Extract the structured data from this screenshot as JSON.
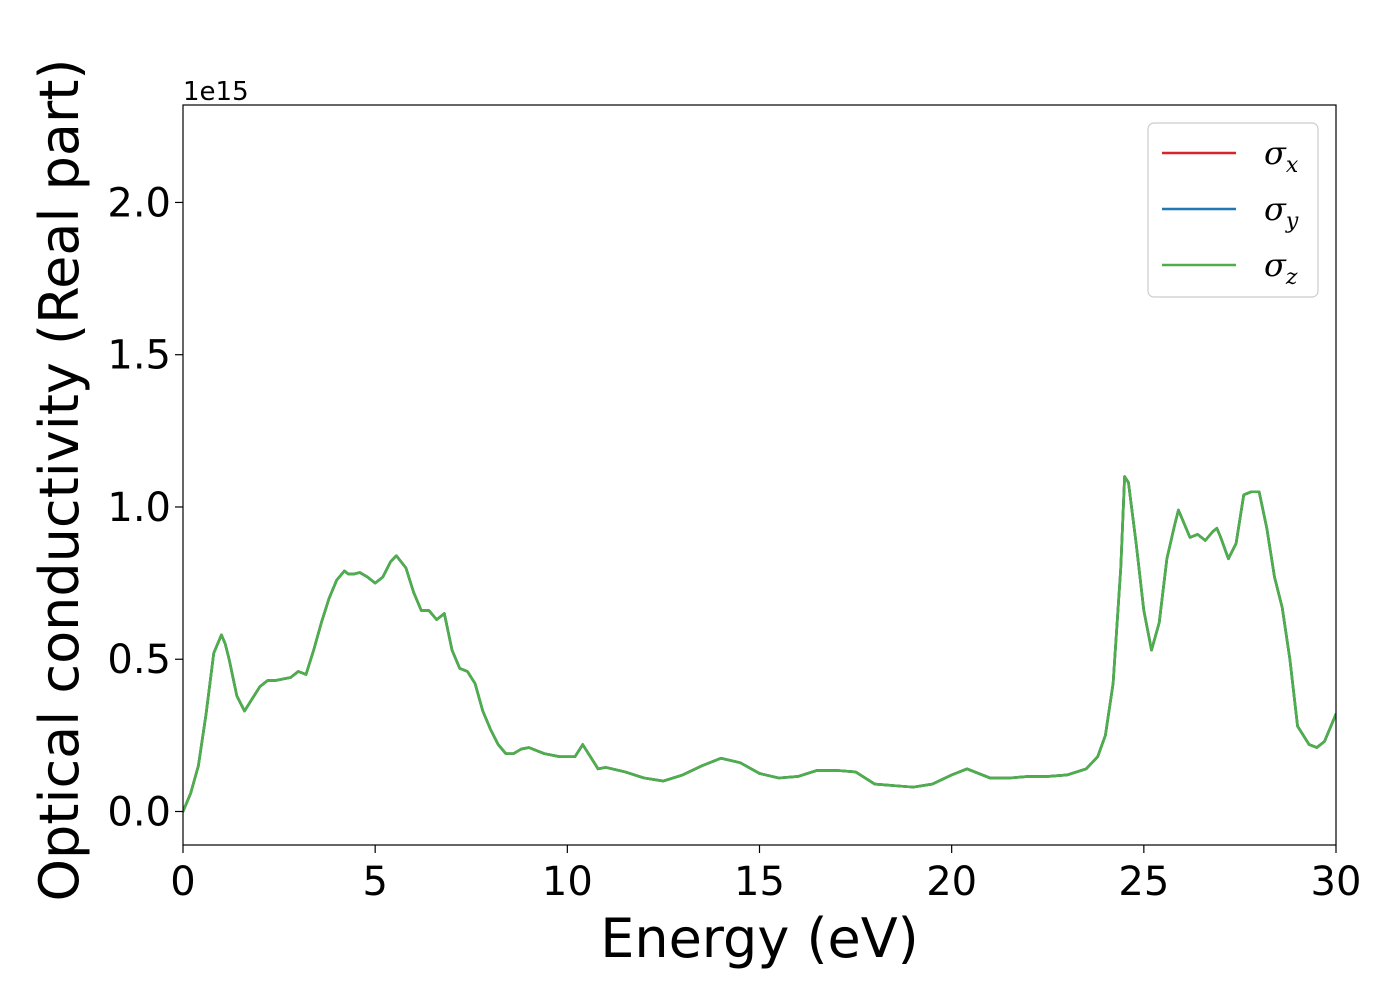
{
  "chart_data": {
    "type": "line",
    "title": "",
    "xlabel": "Energy (eV)",
    "ylabel": "Optical conductivity (Real part)",
    "y_offset_label": "1e15",
    "xlim": [
      0,
      30
    ],
    "ylim": [
      -0.11,
      2.32
    ],
    "x_ticks": [
      0,
      5,
      10,
      15,
      20,
      25,
      30
    ],
    "y_ticks": [
      0.0,
      0.5,
      1.0,
      1.5,
      2.0
    ],
    "x_tick_labels": [
      "0",
      "5",
      "10",
      "15",
      "20",
      "25",
      "30"
    ],
    "y_tick_labels": [
      "0.0",
      "0.5",
      "1.0",
      "1.5",
      "2.0"
    ],
    "grid": false,
    "legend_position": "top-right",
    "x": [
      0,
      0.2,
      0.4,
      0.6,
      0.8,
      1.0,
      1.1,
      1.2,
      1.4,
      1.6,
      1.8,
      2.0,
      2.2,
      2.4,
      2.6,
      2.8,
      3.0,
      3.2,
      3.4,
      3.6,
      3.8,
      4.0,
      4.2,
      4.3,
      4.45,
      4.6,
      4.8,
      5.0,
      5.2,
      5.4,
      5.55,
      5.8,
      6.0,
      6.2,
      6.4,
      6.6,
      6.8,
      7.0,
      7.2,
      7.4,
      7.6,
      7.8,
      8.0,
      8.2,
      8.4,
      8.6,
      8.8,
      9.0,
      9.4,
      9.8,
      10.2,
      10.4,
      10.6,
      10.8,
      11.0,
      11.5,
      12.0,
      12.5,
      13.0,
      13.5,
      14.0,
      14.5,
      15.0,
      15.5,
      16.0,
      16.5,
      17.0,
      17.5,
      18.0,
      18.5,
      19.0,
      19.5,
      20.0,
      20.4,
      21.0,
      21.5,
      22.0,
      22.5,
      23.0,
      23.5,
      23.8,
      24.0,
      24.2,
      24.4,
      24.5,
      24.6,
      24.8,
      25.0,
      25.2,
      25.4,
      25.6,
      25.8,
      25.9,
      26.0,
      26.2,
      26.4,
      26.6,
      26.8,
      26.9,
      27.0,
      27.2,
      27.4,
      27.6,
      27.8,
      28.0,
      28.2,
      28.4,
      28.6,
      28.8,
      29.0,
      29.3,
      29.5,
      29.7,
      30.0
    ],
    "series": [
      {
        "name": "σx",
        "color": "#d62728",
        "values": [
          0.0,
          0.06,
          0.15,
          0.32,
          0.52,
          0.58,
          0.55,
          0.5,
          0.38,
          0.33,
          0.37,
          0.41,
          0.43,
          0.43,
          0.435,
          0.44,
          0.46,
          0.45,
          0.53,
          0.62,
          0.7,
          0.76,
          0.79,
          0.78,
          0.78,
          0.785,
          0.77,
          0.75,
          0.77,
          0.82,
          0.84,
          0.8,
          0.72,
          0.66,
          0.66,
          0.63,
          0.65,
          0.53,
          0.47,
          0.46,
          0.42,
          0.33,
          0.27,
          0.22,
          0.19,
          0.19,
          0.205,
          0.21,
          0.19,
          0.18,
          0.18,
          0.22,
          0.18,
          0.14,
          0.145,
          0.13,
          0.11,
          0.1,
          0.12,
          0.15,
          0.175,
          0.16,
          0.125,
          0.11,
          0.115,
          0.135,
          0.135,
          0.13,
          0.09,
          0.085,
          0.08,
          0.09,
          0.12,
          0.14,
          0.11,
          0.11,
          0.115,
          0.115,
          0.12,
          0.14,
          0.18,
          0.25,
          0.42,
          0.8,
          1.1,
          1.08,
          0.88,
          0.66,
          0.53,
          0.62,
          0.83,
          0.94,
          0.99,
          0.96,
          0.9,
          0.91,
          0.89,
          0.92,
          0.93,
          0.9,
          0.83,
          0.88,
          1.04,
          1.05,
          1.05,
          0.93,
          0.77,
          0.67,
          0.5,
          0.28,
          0.22,
          0.21,
          0.23,
          0.32
        ]
      },
      {
        "name": "σy",
        "color": "#1f77b4",
        "values": [
          0.0,
          0.06,
          0.15,
          0.32,
          0.52,
          0.58,
          0.55,
          0.5,
          0.38,
          0.33,
          0.37,
          0.41,
          0.43,
          0.43,
          0.435,
          0.44,
          0.46,
          0.45,
          0.53,
          0.62,
          0.7,
          0.76,
          0.79,
          0.78,
          0.78,
          0.785,
          0.77,
          0.75,
          0.77,
          0.82,
          0.84,
          0.8,
          0.72,
          0.66,
          0.66,
          0.63,
          0.65,
          0.53,
          0.47,
          0.46,
          0.42,
          0.33,
          0.27,
          0.22,
          0.19,
          0.19,
          0.205,
          0.21,
          0.19,
          0.18,
          0.18,
          0.22,
          0.18,
          0.14,
          0.145,
          0.13,
          0.11,
          0.1,
          0.12,
          0.15,
          0.175,
          0.16,
          0.125,
          0.11,
          0.115,
          0.135,
          0.135,
          0.13,
          0.09,
          0.085,
          0.08,
          0.09,
          0.12,
          0.14,
          0.11,
          0.11,
          0.115,
          0.115,
          0.12,
          0.14,
          0.18,
          0.25,
          0.42,
          0.8,
          1.1,
          1.08,
          0.88,
          0.66,
          0.53,
          0.62,
          0.83,
          0.94,
          0.99,
          0.96,
          0.9,
          0.91,
          0.89,
          0.92,
          0.93,
          0.9,
          0.83,
          0.88,
          1.04,
          1.05,
          1.05,
          0.93,
          0.77,
          0.67,
          0.5,
          0.28,
          0.22,
          0.21,
          0.23,
          0.32
        ]
      },
      {
        "name": "σz",
        "color": "#4daf4a",
        "values": [
          0.0,
          0.06,
          0.15,
          0.32,
          0.52,
          0.58,
          0.55,
          0.5,
          0.38,
          0.33,
          0.37,
          0.41,
          0.43,
          0.43,
          0.435,
          0.44,
          0.46,
          0.45,
          0.53,
          0.62,
          0.7,
          0.76,
          0.79,
          0.78,
          0.78,
          0.785,
          0.77,
          0.75,
          0.77,
          0.82,
          0.84,
          0.8,
          0.72,
          0.66,
          0.66,
          0.63,
          0.65,
          0.53,
          0.47,
          0.46,
          0.42,
          0.33,
          0.27,
          0.22,
          0.19,
          0.19,
          0.205,
          0.21,
          0.19,
          0.18,
          0.18,
          0.22,
          0.18,
          0.14,
          0.145,
          0.13,
          0.11,
          0.1,
          0.12,
          0.15,
          0.175,
          0.16,
          0.125,
          0.11,
          0.115,
          0.135,
          0.135,
          0.13,
          0.09,
          0.085,
          0.08,
          0.09,
          0.12,
          0.14,
          0.11,
          0.11,
          0.115,
          0.115,
          0.12,
          0.14,
          0.18,
          0.25,
          0.42,
          0.8,
          1.1,
          1.08,
          0.88,
          0.66,
          0.53,
          0.62,
          0.83,
          0.94,
          0.99,
          0.96,
          0.9,
          0.91,
          0.89,
          0.92,
          0.93,
          0.9,
          0.83,
          0.88,
          1.04,
          1.05,
          1.05,
          0.93,
          0.77,
          0.67,
          0.5,
          0.28,
          0.22,
          0.21,
          0.23,
          0.32
        ]
      }
    ],
    "legend": [
      {
        "symbol": "σ",
        "subscript": "x",
        "color": "#d62728"
      },
      {
        "symbol": "σ",
        "subscript": "y",
        "color": "#1f77b4"
      },
      {
        "symbol": "σ",
        "subscript": "z",
        "color": "#4daf4a"
      }
    ]
  }
}
